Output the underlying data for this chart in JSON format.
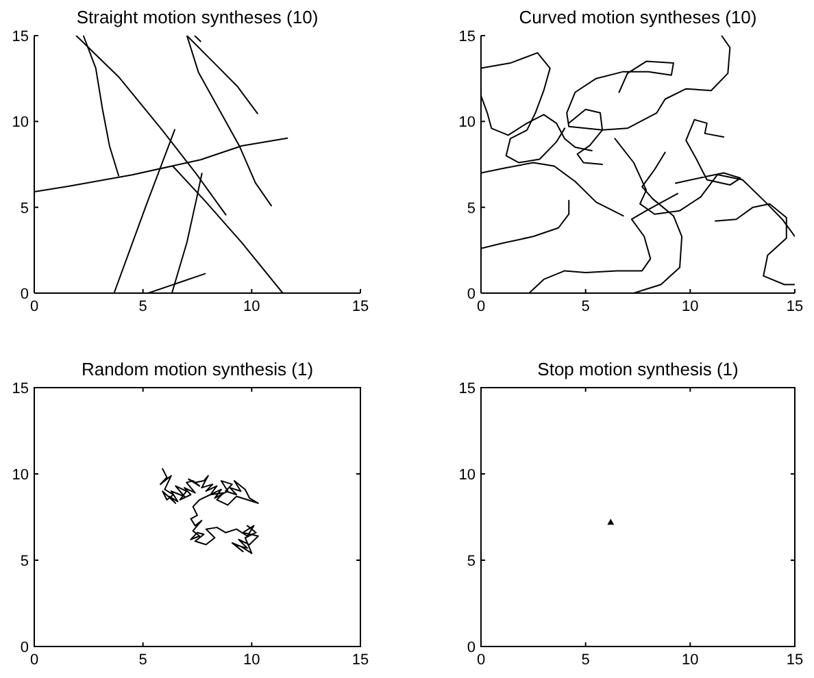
{
  "chart_data": [
    {
      "type": "line",
      "title": "Straight motion syntheses (10)",
      "xlim": [
        0,
        15
      ],
      "ylim": [
        0,
        15
      ],
      "xticks": [
        0,
        5,
        10,
        15
      ],
      "yticks": [
        0,
        5,
        10,
        15
      ],
      "series": [
        {
          "color": "#000000",
          "x": [
            1.93,
            3.88,
            5.87,
            7.44,
            8.81
          ],
          "values": [
            15,
            12.6,
            9.52,
            6.97,
            4.56
          ]
        },
        {
          "color": "#000000",
          "x": [
            2.26,
            2.83,
            3.14,
            3.46,
            3.88
          ],
          "values": [
            15,
            13.1,
            10.7,
            8.58,
            6.84
          ]
        },
        {
          "color": "#000000",
          "x": [
            0,
            1.57,
            4.51,
            7.65,
            9.54,
            11.64
          ],
          "values": [
            5.9,
            6.22,
            6.89,
            7.77,
            8.58,
            9.03
          ]
        },
        {
          "color": "#000000",
          "x": [
            3.67,
            5.14,
            6.46
          ],
          "values": [
            0,
            5.09,
            9.52
          ]
        },
        {
          "color": "#000000",
          "x": [
            6.33,
            7.02,
            7.44,
            7.71
          ],
          "values": [
            0,
            2.95,
            5.36,
            6.97
          ]
        },
        {
          "color": "#000000",
          "x": [
            5.24,
            7.86
          ],
          "values": [
            0,
            1.13
          ]
        },
        {
          "color": "#000000",
          "x": [
            7.02,
            7.55,
            8.49,
            9.43,
            10.17,
            10.9
          ],
          "values": [
            15,
            12.87,
            10.72,
            8.58,
            6.43,
            5.09
          ]
        },
        {
          "color": "#000000",
          "x": [
            7.02,
            8.28,
            9.33,
            10.27
          ],
          "values": [
            15,
            13.4,
            12.06,
            10.46
          ]
        },
        {
          "color": "#000000",
          "x": [
            7.38,
            7.65
          ],
          "values": [
            15,
            14.66
          ]
        },
        {
          "color": "#000000",
          "x": [
            6.39,
            7.86,
            9.54,
            11.43
          ],
          "values": [
            7.37,
            5.36,
            2.95,
            0
          ]
        }
      ]
    },
    {
      "type": "line",
      "title": "Curved motion syntheses (10)",
      "xlim": [
        0,
        15
      ],
      "ylim": [
        0,
        15
      ],
      "xticks": [
        0,
        5,
        10,
        15
      ],
      "yticks": [
        0,
        5,
        10,
        15
      ],
      "series": [
        {
          "color": "#000000",
          "x": [
            0,
            1.4,
            2.7,
            3.3,
            3,
            2.6,
            2.2,
            1.4,
            1.2,
            1.8,
            2.8,
            3.6,
            4
          ],
          "values": [
            13.1,
            13.4,
            14,
            13.1,
            11.8,
            10.5,
            9.5,
            9,
            8,
            7.6,
            7.8,
            8.8,
            9.6
          ]
        },
        {
          "color": "#000000",
          "x": [
            0,
            0.3,
            0.5,
            1.3,
            2.2,
            3,
            3.6,
            4,
            4.5,
            5.3
          ],
          "values": [
            11.5,
            10.5,
            9.6,
            9.2,
            9.9,
            10.4,
            9.9,
            9,
            8.5,
            8.3
          ]
        },
        {
          "color": "#000000",
          "x": [
            0,
            1.2,
            2.5,
            3.5,
            4.5,
            5.5,
            6.8
          ],
          "values": [
            7,
            7.3,
            7.6,
            7.4,
            6.5,
            5.3,
            4.5
          ]
        },
        {
          "color": "#000000",
          "x": [
            0,
            1,
            2.5,
            3.7,
            4.2,
            4.2
          ],
          "values": [
            2.6,
            2.9,
            3.3,
            3.8,
            4.6,
            5.4
          ]
        },
        {
          "color": "#000000",
          "x": [
            2.3,
            3,
            4,
            5,
            6.5,
            7.7,
            8.1,
            7.8,
            7.2,
            7.9,
            9.4
          ],
          "values": [
            0,
            0.8,
            1.3,
            1.2,
            1.3,
            1.3,
            2,
            3.3,
            4.3,
            4.8,
            5.8
          ]
        },
        {
          "color": "#000000",
          "x": [
            7.3,
            8.6,
            9.5,
            9.6,
            9.2,
            8.2,
            7.7,
            8.3,
            8.8
          ],
          "values": [
            0,
            0.5,
            1.5,
            3.3,
            4.5,
            5.5,
            6.2,
            7.2,
            8.2
          ]
        },
        {
          "color": "#000000",
          "x": [
            4.2,
            5,
            5.7,
            5.8,
            5.2,
            4.6,
            4.9,
            5.8
          ],
          "values": [
            9.9,
            10.7,
            10.5,
            9.5,
            8.6,
            8.1,
            7.6,
            7.5
          ]
        },
        {
          "color": "#000000",
          "x": [
            6.6,
            7,
            7.9,
            9.2,
            9.1,
            8,
            6.8,
            5.5,
            4.5,
            4.1,
            4.2,
            5.8,
            7,
            8.4,
            8.8,
            9.8,
            11,
            11.8,
            11.9,
            11.5
          ],
          "values": [
            11.7,
            12.8,
            13.5,
            13.4,
            12.7,
            12.9,
            12.9,
            12.5,
            11.7,
            10.5,
            9.7,
            9.5,
            9.6,
            10.5,
            11.3,
            11.9,
            11.8,
            12.8,
            14.3,
            15
          ]
        },
        {
          "color": "#000000",
          "x": [
            6.4,
            7.3,
            7.9,
            7.6,
            8.3,
            9.5,
            10.5,
            11.3,
            12.5,
            13.6,
            14.4,
            15
          ],
          "values": [
            9,
            7.6,
            6,
            5.2,
            4.6,
            4.8,
            5.6,
            6.9,
            6.6,
            5.3,
            4.3,
            3.3
          ]
        },
        {
          "color": "#000000",
          "x": [
            9.3,
            10.8,
            11.6,
            12.4,
            11.9,
            10.8,
            10.3,
            9.8,
            10.2,
            10.8,
            10.7,
            11.6
          ],
          "values": [
            6.4,
            6.8,
            7,
            6.7,
            6.3,
            6.6,
            7.8,
            8.9,
            10.1,
            9.9,
            9.3,
            9.1
          ]
        },
        {
          "color": "#000000",
          "x": [
            11.2,
            12.2,
            13,
            13.8,
            14.6,
            14.6,
            13.7,
            13.5,
            14.5,
            15
          ],
          "values": [
            4.2,
            4.3,
            5,
            5.2,
            4.4,
            3.2,
            2.2,
            1,
            0.5,
            0.5
          ]
        }
      ]
    },
    {
      "type": "line",
      "title": "Random motion synthesis (1)",
      "xlim": [
        0,
        15
      ],
      "ylim": [
        0,
        15
      ],
      "xticks": [
        0,
        5,
        10,
        15
      ],
      "yticks": [
        0,
        5,
        10,
        15
      ],
      "series": [
        {
          "color": "#000000",
          "x": [
            5.9,
            6.1,
            5.8,
            6.3,
            6.0,
            6.4,
            6.1,
            5.9,
            6.5,
            6.2,
            6.6,
            6.3,
            6.9,
            6.5,
            7.0,
            6.7,
            7.2,
            6.9,
            7.4,
            7.0,
            7.3,
            7.6,
            7.1,
            7.4,
            7.8,
            8.0,
            7.7,
            8.2,
            7.9,
            8.4,
            8.1,
            8.6,
            8.3,
            8.9,
            8.6,
            9.1,
            8.8,
            9.3,
            9.0,
            9.5,
            9.2,
            9.7,
            9.9,
            10.3,
            9.8,
            9.3,
            8.9,
            8.4,
            8.7,
            8.1,
            7.6,
            7.3,
            7.5,
            7.2,
            7.4,
            7.7,
            7.3,
            7.6,
            7.2,
            7.5,
            7.8,
            7.4,
            7.9,
            8.3,
            7.9,
            8.4,
            8.8,
            9.3,
            9.8,
            10.1,
            9.6,
            10.3,
            9.9,
            9.4,
            9.8,
            9.2,
            9.6,
            9.1,
            9.5,
            10.0,
            9.7,
            10.2,
            9.8
          ],
          "values": [
            10.3,
            9.8,
            9.4,
            9.9,
            9.1,
            8.8,
            8.5,
            9.0,
            8.3,
            8.7,
            8.4,
            9.0,
            8.7,
            9.3,
            9.0,
            8.5,
            8.8,
            9.2,
            8.9,
            9.5,
            9.6,
            9.3,
            9.7,
            9.5,
            9.6,
            9.9,
            9.2,
            9.4,
            9.0,
            9.3,
            8.8,
            9.1,
            8.6,
            9.0,
            9.6,
            9.4,
            9.0,
            8.8,
            9.2,
            9.0,
            9.6,
            9.1,
            8.6,
            8.3,
            8.5,
            8.7,
            8.2,
            8.5,
            8.9,
            8.8,
            8.5,
            8.1,
            7.6,
            7.4,
            7.0,
            7.3,
            6.7,
            6.4,
            6.2,
            6.6,
            6.5,
            6.1,
            5.9,
            6.3,
            6.8,
            6.9,
            6.6,
            6.8,
            6.4,
            7.0,
            6.6,
            6.4,
            5.9,
            6.2,
            5.7,
            5.9,
            5.5,
            6.0,
            5.8,
            5.4,
            6.3,
            6.6,
            7.0
          ]
        }
      ]
    },
    {
      "type": "scatter",
      "title": "Stop motion synthesis (1)",
      "xlim": [
        0,
        15
      ],
      "ylim": [
        0,
        15
      ],
      "xticks": [
        0,
        5,
        10,
        15
      ],
      "yticks": [
        0,
        5,
        10,
        15
      ],
      "marker": "triangle",
      "series": [
        {
          "color": "#000000",
          "x": [
            6.2
          ],
          "values": [
            7.2
          ]
        }
      ]
    }
  ]
}
